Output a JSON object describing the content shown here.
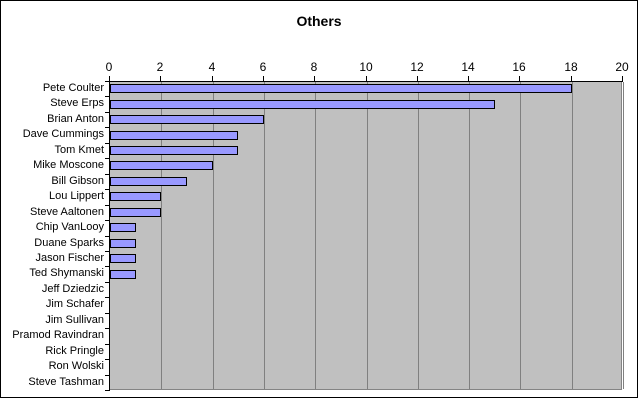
{
  "chart_data": {
    "type": "bar",
    "orientation": "horizontal",
    "title": "Others",
    "categories": [
      "Pete Coulter",
      "Steve Erps",
      "Brian Anton",
      "Dave Cummings",
      "Tom Kmet",
      "Mike Moscone",
      "Bill Gibson",
      "Lou Lippert",
      "Steve Aaltonen",
      "Chip VanLooy",
      "Duane Sparks",
      "Jason Fischer",
      "Ted Shymanski",
      "Jeff Dziedzic",
      "Jim Schafer",
      "Jim Sullivan",
      "Pramod Ravindran",
      "Rick Pringle",
      "Ron Wolski",
      "Steve Tashman"
    ],
    "values": [
      18,
      15,
      6,
      5,
      5,
      4,
      3,
      2,
      2,
      1,
      1,
      1,
      1,
      0,
      0,
      0,
      0,
      0,
      0,
      0
    ],
    "xlabel": "",
    "ylabel": "",
    "xlim": [
      0,
      20
    ],
    "xticks": [
      0,
      2,
      4,
      6,
      8,
      10,
      12,
      14,
      16,
      18,
      20
    ],
    "grid": true,
    "legend": "none"
  },
  "colors": {
    "bar_fill": "#9999ff",
    "bar_border": "#000000",
    "plot_background": "#c0c0c0",
    "gridline": "#808080",
    "axis": "#000000",
    "chart_background": "#ffffff",
    "frame_border": "#000000",
    "text": "#000000"
  }
}
